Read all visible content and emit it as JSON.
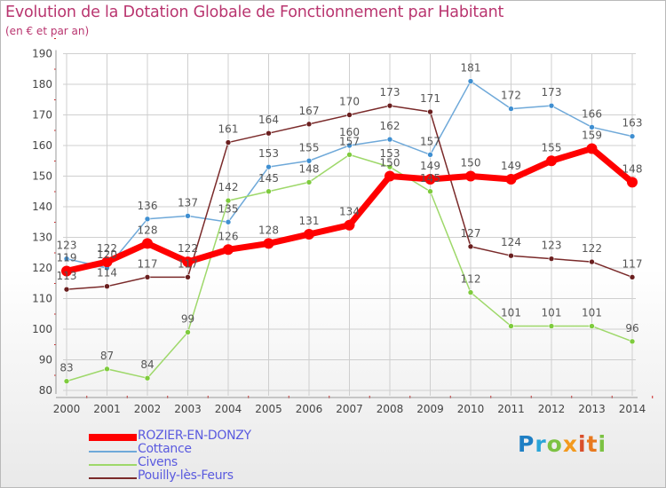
{
  "title": "Evolution de la Dotation Globale de Fonctionnement par Habitant",
  "subtitle": "(en € et par an)",
  "colors": {
    "title": "#b9356f",
    "axis": "#999999",
    "grid": "#cfcfcf",
    "tick_mark": "#cc2222",
    "label": "#444444",
    "value_label": "#555555",
    "legend_text": "#5a5adf"
  },
  "chart_data": {
    "type": "line",
    "x": [
      "2000",
      "2001",
      "2002",
      "2003",
      "2004",
      "2005",
      "2006",
      "2007",
      "2008",
      "2009",
      "2010",
      "2011",
      "2012",
      "2013",
      "2014"
    ],
    "ylim": [
      80,
      190
    ],
    "yticks": [
      "80",
      "90",
      "100",
      "110",
      "120",
      "130",
      "140",
      "150",
      "160",
      "170",
      "180",
      "190"
    ],
    "grid": true,
    "legend_position": "bottom-left",
    "series": [
      {
        "name": "Cottance",
        "color": "#6fa9d9",
        "dot": "#3f8fd1",
        "values": [
          123,
          120,
          136,
          137,
          135,
          153,
          155,
          160,
          162,
          157,
          181,
          172,
          173,
          166,
          163
        ],
        "labels": [
          "123",
          "120",
          "136",
          "137",
          "135",
          "153",
          "155",
          "160",
          "162",
          "157",
          "181",
          "172",
          "173",
          "166",
          "163"
        ]
      },
      {
        "name": "Civens",
        "color": "#9ed86a",
        "dot": "#7ecb3d",
        "values": [
          83,
          87,
          84,
          99,
          142,
          145,
          148,
          157,
          153,
          145,
          112,
          101,
          101,
          101,
          96
        ],
        "labels": [
          "83",
          "87",
          "84",
          "99",
          "142",
          "145",
          "148",
          "157",
          "153",
          "145",
          "112",
          "101",
          "101",
          "101",
          "96"
        ]
      },
      {
        "name": "Pouilly-lès-Feurs",
        "color": "#7a2a2a",
        "dot": "#6a1f1f",
        "values": [
          113,
          114,
          117,
          117,
          161,
          164,
          167,
          170,
          173,
          171,
          127,
          124,
          123,
          122,
          117
        ],
        "labels": [
          "113",
          "114",
          "117",
          "117",
          "161",
          "164",
          "167",
          "170",
          "173",
          "171",
          "127",
          "124",
          "123",
          "122",
          "117"
        ]
      },
      {
        "name": "ROZIER-EN-DONZY",
        "color": "#ff0000",
        "dot": "#ff0000",
        "values": [
          119,
          122,
          128,
          122,
          126,
          128,
          131,
          134,
          150,
          149,
          150,
          149,
          155,
          159,
          148
        ],
        "labels": [
          "119",
          "122",
          "128",
          "122",
          "126",
          "128",
          "131",
          "134",
          "150",
          "149",
          "150",
          "149",
          "155",
          "159",
          "148"
        ]
      }
    ]
  },
  "legend": [
    {
      "name": "ROZIER-EN-DONZY",
      "color": "#ff0000",
      "thickness": "thick"
    },
    {
      "name": "Cottance",
      "color": "#6fa9d9",
      "thickness": "thin"
    },
    {
      "name": "Civens",
      "color": "#9ed86a",
      "thickness": "thin"
    },
    {
      "name": "Pouilly-lès-Feurs",
      "color": "#7a2a2a",
      "thickness": "thin"
    }
  ],
  "logo": {
    "text": "Proxiti"
  }
}
